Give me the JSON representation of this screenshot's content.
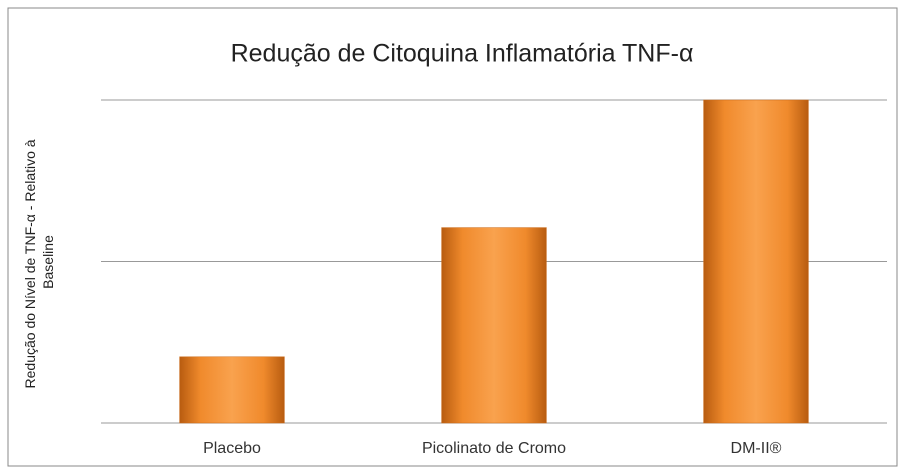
{
  "chart_data": {
    "type": "bar",
    "title": "Redução de Citoquina Inflamatória TNF-α",
    "ylabel": [
      "Redução do Nível de TNF-α - Relativo à",
      "Baseline"
    ],
    "categories": [
      "Placebo",
      "Picolinato de Cromo",
      "DM-II®"
    ],
    "values": [
      0.41,
      1.21,
      2.0
    ],
    "color": "#f79646",
    "ylim": [
      0,
      2
    ],
    "yticks": [
      0,
      1,
      2
    ],
    "grid": true
  }
}
